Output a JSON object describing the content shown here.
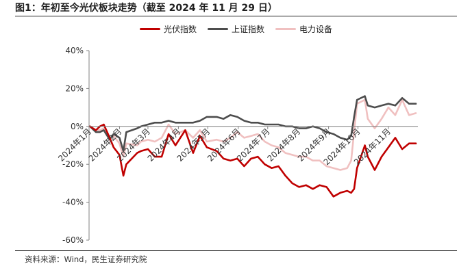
{
  "header": {
    "title": "图1：年初至今光伏板块走势（截至 2024 年 11 月 29 日）"
  },
  "footer": {
    "source": "资料来源：Wind，民生证券研究院"
  },
  "colors": {
    "pv": "#c00000",
    "sh": "#4d4d4d",
    "power": "#f0c0c0"
  },
  "chart_data": {
    "type": "line",
    "ylim": [
      -60,
      40
    ],
    "ytick_values": [
      -60,
      -40,
      -20,
      0,
      20,
      40
    ],
    "ytick_labels": [
      "-60%",
      "-40%",
      "-20%",
      "0%",
      "20%",
      "40%"
    ],
    "xtick_labels": [
      "2024年1月",
      "2024年2月",
      "2024年3月",
      "2024年4月",
      "2024年5月",
      "2024年6月",
      "2024年7月",
      "2024年8月",
      "2024年9月",
      "2024年10月",
      "2024年11月"
    ],
    "x": [
      "2024-01-02",
      "2024-01-08",
      "2024-01-12",
      "2024-01-16",
      "2024-01-22",
      "2024-01-26",
      "2024-02-01",
      "2024-02-05",
      "2024-02-08",
      "2024-02-19",
      "2024-02-23",
      "2024-03-01",
      "2024-03-08",
      "2024-03-15",
      "2024-03-22",
      "2024-03-29",
      "2024-04-08",
      "2024-04-16",
      "2024-04-23",
      "2024-04-30",
      "2024-05-10",
      "2024-05-17",
      "2024-05-24",
      "2024-05-31",
      "2024-06-07",
      "2024-06-14",
      "2024-06-21",
      "2024-06-28",
      "2024-07-05",
      "2024-07-12",
      "2024-07-19",
      "2024-07-26",
      "2024-08-02",
      "2024-08-09",
      "2024-08-16",
      "2024-08-23",
      "2024-08-30",
      "2024-09-06",
      "2024-09-13",
      "2024-09-20",
      "2024-09-24",
      "2024-09-27",
      "2024-09-30",
      "2024-10-08",
      "2024-10-11",
      "2024-10-18",
      "2024-10-25",
      "2024-11-01",
      "2024-11-08",
      "2024-11-15",
      "2024-11-22",
      "2024-11-29"
    ],
    "series": [
      {
        "name": "光伏指数",
        "color": "#c00000",
        "values": [
          0,
          -2,
          0,
          1,
          -6,
          -11,
          -15,
          -26,
          -20,
          -14,
          -13,
          -12,
          -16,
          -16,
          -4,
          -10,
          -2,
          -14,
          -5,
          -11,
          -13,
          -17,
          -18,
          -17,
          -21,
          -17,
          -16,
          -20,
          -22,
          -21,
          -26,
          -30,
          -32,
          -31,
          -33,
          -31,
          -32,
          -37,
          -35,
          -34,
          -35,
          -33,
          -22,
          -10,
          -16,
          -23,
          -16,
          -11,
          -6,
          -12,
          -9,
          -9
        ]
      },
      {
        "name": "上证指数",
        "color": "#4d4d4d",
        "values": [
          0,
          -3,
          -3,
          -2,
          -7,
          -4,
          -6,
          -13,
          -3,
          -1,
          0,
          1,
          2,
          2,
          3,
          2,
          2,
          2,
          3,
          5,
          5,
          4,
          6,
          5,
          3,
          2,
          2,
          1,
          1,
          1,
          0,
          0,
          -1,
          -1,
          0,
          -1,
          -3,
          -4,
          -6,
          -7,
          -5,
          5,
          14,
          16,
          11,
          10,
          11,
          12,
          11,
          15,
          12,
          12
        ]
      },
      {
        "name": "电力设备",
        "color": "#f0c0c0",
        "values": [
          0,
          -2,
          -2,
          -1,
          -6,
          -5,
          -9,
          -16,
          -9,
          -10,
          -8,
          -7,
          -8,
          -6,
          1,
          -4,
          -2,
          -6,
          -2,
          -8,
          -7,
          -8,
          -6,
          -3,
          -6,
          -5,
          -4,
          -8,
          -10,
          -11,
          -14,
          -15,
          -16,
          -16,
          -18,
          -18,
          -21,
          -22,
          -23,
          -22,
          -18,
          -3,
          12,
          14,
          4,
          -1,
          4,
          10,
          6,
          14,
          6,
          7
        ]
      }
    ]
  }
}
